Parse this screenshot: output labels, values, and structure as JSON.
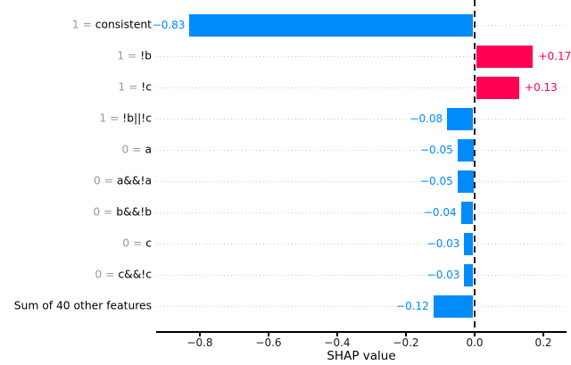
{
  "chart_data": {
    "type": "bar",
    "orientation": "horizontal",
    "title": "",
    "xlabel": "SHAP value",
    "xlim": [
      -0.93,
      0.27
    ],
    "xticks": [
      {
        "value": -0.8,
        "label": "−0.8"
      },
      {
        "value": -0.6,
        "label": "−0.6"
      },
      {
        "value": -0.4,
        "label": "−0.4"
      },
      {
        "value": -0.2,
        "label": "−0.2"
      },
      {
        "value": 0.0,
        "label": "0.0"
      },
      {
        "value": 0.2,
        "label": "0.2"
      }
    ],
    "grid": "dotted horizontal guide per row",
    "zero_line": "black dashed vertical line at x=0",
    "legend": "none",
    "colors": {
      "positive_bar": "#ff0051",
      "negative_bar": "#008bfb",
      "feature_prefix_text": "#999999",
      "feature_name_text": "#000000",
      "guide_dots": "#c9c9c9",
      "zero_dash": "#1c1c1c",
      "axis": "#000000"
    },
    "rows": [
      {
        "prefix": "1 = ",
        "name": "consistent",
        "value": -0.83,
        "value_label": "−0.83"
      },
      {
        "prefix": "1 = ",
        "name": "!b",
        "value": 0.17,
        "value_label": "+0.17"
      },
      {
        "prefix": "1 = ",
        "name": "!c",
        "value": 0.13,
        "value_label": "+0.13"
      },
      {
        "prefix": "1 = ",
        "name": "!b||!c",
        "value": -0.08,
        "value_label": "−0.08"
      },
      {
        "prefix": "0 = ",
        "name": "a",
        "value": -0.05,
        "value_label": "−0.05"
      },
      {
        "prefix": "0 = ",
        "name": "a&&!a",
        "value": -0.05,
        "value_label": "−0.05"
      },
      {
        "prefix": "0 = ",
        "name": "b&&!b",
        "value": -0.04,
        "value_label": "−0.04"
      },
      {
        "prefix": "0 = ",
        "name": "c",
        "value": -0.03,
        "value_label": "−0.03"
      },
      {
        "prefix": "0 = ",
        "name": "c&&!c",
        "value": -0.03,
        "value_label": "−0.03"
      },
      {
        "prefix": "",
        "name": "Sum of 40 other features",
        "value": -0.12,
        "value_label": "−0.12"
      }
    ]
  }
}
